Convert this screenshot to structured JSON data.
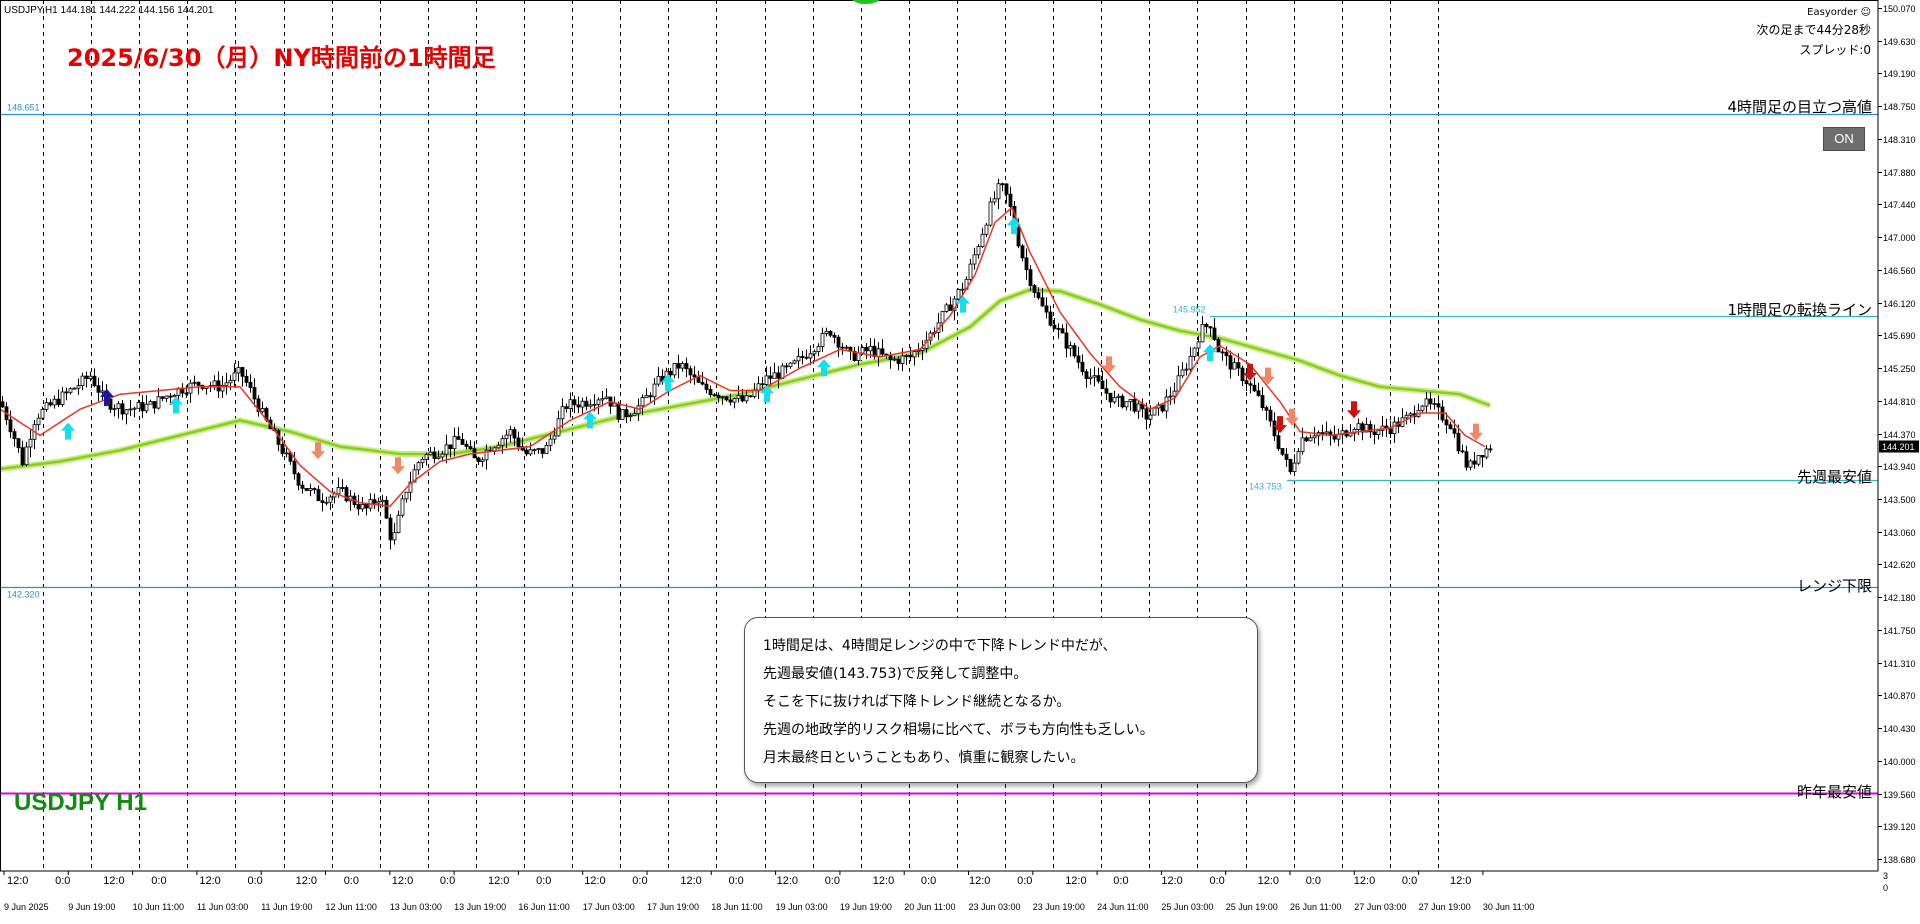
{
  "header": {
    "symbol_info": "USDJPY,H1  144.181 144.222 144.156 144.201",
    "title": "2025/6/30（月）NY時間前の1時間足",
    "symbol_label": "USDJPY H1"
  },
  "easyorder": {
    "brand": "Easyorder ☺",
    "next_bar": "次の足まで44分28秒",
    "spread": "スプレッド:0",
    "on_button": "ON"
  },
  "price_axis": {
    "labels": [
      "150.070",
      "149.630",
      "149.190",
      "148.750",
      "148.310",
      "147.880",
      "147.440",
      "147.000",
      "146.560",
      "146.120",
      "145.690",
      "145.250",
      "144.810",
      "144.370",
      "143.940",
      "143.500",
      "143.060",
      "142.620",
      "142.180",
      "141.750",
      "141.310",
      "140.870",
      "140.430",
      "140.000",
      "139.560",
      "139.120",
      "138.680"
    ],
    "current_price": "144.201",
    "bottom_labels": [
      "3",
      "0"
    ]
  },
  "time_axis": {
    "hour_labels": [
      "12:0",
      "0:0",
      "12:0",
      "0:0",
      "12:0",
      "0:0",
      "12:0",
      "0:0",
      "12:0",
      "0:0",
      "12:0",
      "0:0",
      "12:0",
      "0:0",
      "12:0",
      "0:0",
      "12:0",
      "0:0",
      "12:0",
      "0:0",
      "12:0",
      "0:0",
      "12:0",
      "0:0",
      "12:0",
      "0:0",
      "12:0",
      "0:0",
      "12:0",
      "0:0",
      "12:0"
    ],
    "date_labels": [
      "9 Jun 2025",
      "9 Jun 19:00",
      "10 Jun 11:00",
      "11 Jun 03:00",
      "11 Jun 19:00",
      "12 Jun 11:00",
      "13 Jun 03:00",
      "13 Jun 19:00",
      "16 Jun 11:00",
      "17 Jun 03:00",
      "17 Jun 19:00",
      "18 Jun 11:00",
      "19 Jun 03:00",
      "19 Jun 19:00",
      "20 Jun 11:00",
      "23 Jun 03:00",
      "23 Jun 19:00",
      "24 Jun 11:00",
      "25 Jun 03:00",
      "25 Jun 19:00",
      "26 Jun 11:00",
      "27 Jun 03:00",
      "27 Jun 19:00",
      "30 Jun 11:00"
    ]
  },
  "levels": [
    {
      "price": 148.651,
      "price_label": "148.651",
      "text": "4時間足の目立つ高値",
      "color": "#2b8fd6"
    },
    {
      "price": 145.952,
      "price_label": "145.952",
      "text": "1時間足の転換ライン",
      "color": "#36b5c8"
    },
    {
      "price": 143.753,
      "price_label": "143.753",
      "text": "先週最安値",
      "color": "#36b5c8"
    },
    {
      "price": 142.32,
      "price_label": "142.320",
      "text": "レンジ下限",
      "color": "#2b8fd6"
    },
    {
      "price": 139.56,
      "price_label": "",
      "text": "昨年最安値",
      "color": "#e000e0"
    }
  ],
  "comment": {
    "lines": [
      "1時間足は、4時間足レンジの中で下降トレンド中だが、",
      "先週最安値(143.753)で反発して調整中。",
      "そこを下に抜ければ下降トレンド継続となるか。",
      "先週の地政学的リスク相場に比べて、ボラも方向性も乏しい。",
      "月末最終日ということもあり、慎重に観察したい。"
    ]
  },
  "colors": {
    "fast_ma": "#ee3322",
    "slow_ma": "#8ccc22",
    "slow_ma_glow": "#c8ee88",
    "candle": "#000000",
    "arrow_up_cyan": "#11e0f0",
    "arrow_up_blue": "#1a1a9a",
    "arrow_down_salmon": "#f08866",
    "arrow_down_red": "#cc1111"
  },
  "chart_data": {
    "type": "line",
    "symbol": "USDJPY",
    "timeframe": "H1",
    "ylim": [
      138.68,
      150.07
    ],
    "price_path": [
      [
        0,
        144.8
      ],
      [
        12,
        144.4
      ],
      [
        22,
        144.0
      ],
      [
        35,
        144.6
      ],
      [
        55,
        144.8
      ],
      [
        75,
        145.0
      ],
      [
        90,
        145.15
      ],
      [
        105,
        144.8
      ],
      [
        125,
        144.7
      ],
      [
        150,
        144.75
      ],
      [
        175,
        144.95
      ],
      [
        200,
        145.05
      ],
      [
        220,
        145.0
      ],
      [
        240,
        145.2
      ],
      [
        252,
        144.9
      ],
      [
        265,
        144.55
      ],
      [
        280,
        144.2
      ],
      [
        300,
        143.7
      ],
      [
        320,
        143.5
      ],
      [
        340,
        143.6
      ],
      [
        365,
        143.35
      ],
      [
        380,
        143.55
      ],
      [
        392,
        142.9
      ],
      [
        405,
        143.6
      ],
      [
        420,
        144.05
      ],
      [
        440,
        144.15
      ],
      [
        460,
        144.3
      ],
      [
        475,
        144.0
      ],
      [
        490,
        144.2
      ],
      [
        510,
        144.4
      ],
      [
        525,
        144.1
      ],
      [
        545,
        144.15
      ],
      [
        565,
        144.75
      ],
      [
        585,
        144.8
      ],
      [
        605,
        144.9
      ],
      [
        620,
        144.6
      ],
      [
        640,
        144.75
      ],
      [
        660,
        145.1
      ],
      [
        680,
        145.3
      ],
      [
        700,
        145.0
      ],
      [
        720,
        144.9
      ],
      [
        745,
        144.8
      ],
      [
        765,
        145.1
      ],
      [
        790,
        145.25
      ],
      [
        810,
        145.5
      ],
      [
        830,
        145.75
      ],
      [
        850,
        145.4
      ],
      [
        870,
        145.5
      ],
      [
        890,
        145.35
      ],
      [
        910,
        145.4
      ],
      [
        930,
        145.7
      ],
      [
        950,
        146.1
      ],
      [
        965,
        146.4
      ],
      [
        980,
        147.0
      ],
      [
        990,
        147.4
      ],
      [
        1000,
        147.7
      ],
      [
        1008,
        147.5
      ],
      [
        1015,
        147.1
      ],
      [
        1025,
        146.6
      ],
      [
        1040,
        146.1
      ],
      [
        1055,
        145.8
      ],
      [
        1070,
        145.5
      ],
      [
        1085,
        145.2
      ],
      [
        1100,
        145.0
      ],
      [
        1115,
        144.8
      ],
      [
        1130,
        144.8
      ],
      [
        1145,
        144.6
      ],
      [
        1160,
        144.7
      ],
      [
        1175,
        145.0
      ],
      [
        1190,
        145.4
      ],
      [
        1200,
        145.75
      ],
      [
        1210,
        145.85
      ],
      [
        1218,
        145.5
      ],
      [
        1230,
        145.3
      ],
      [
        1245,
        145.1
      ],
      [
        1260,
        144.8
      ],
      [
        1270,
        144.5
      ],
      [
        1282,
        144.1
      ],
      [
        1290,
        143.85
      ],
      [
        1300,
        144.3
      ],
      [
        1315,
        144.4
      ],
      [
        1335,
        144.3
      ],
      [
        1355,
        144.5
      ],
      [
        1370,
        144.4
      ],
      [
        1390,
        144.45
      ],
      [
        1410,
        144.6
      ],
      [
        1420,
        144.8
      ],
      [
        1435,
        144.7
      ],
      [
        1450,
        144.5
      ],
      [
        1460,
        144.15
      ],
      [
        1468,
        143.9
      ],
      [
        1478,
        144.1
      ],
      [
        1490,
        144.2
      ]
    ],
    "fast_ma_path": [
      [
        0,
        144.7
      ],
      [
        40,
        144.35
      ],
      [
        80,
        144.7
      ],
      [
        120,
        144.9
      ],
      [
        160,
        144.95
      ],
      [
        200,
        145.0
      ],
      [
        240,
        145.0
      ],
      [
        270,
        144.5
      ],
      [
        300,
        143.95
      ],
      [
        330,
        143.6
      ],
      [
        360,
        143.45
      ],
      [
        390,
        143.4
      ],
      [
        410,
        143.7
      ],
      [
        440,
        144.0
      ],
      [
        470,
        144.1
      ],
      [
        500,
        144.15
      ],
      [
        530,
        144.2
      ],
      [
        570,
        144.55
      ],
      [
        610,
        144.8
      ],
      [
        640,
        144.7
      ],
      [
        670,
        144.95
      ],
      [
        700,
        145.15
      ],
      [
        730,
        144.95
      ],
      [
        760,
        144.95
      ],
      [
        800,
        145.25
      ],
      [
        840,
        145.5
      ],
      [
        880,
        145.4
      ],
      [
        920,
        145.5
      ],
      [
        950,
        145.95
      ],
      [
        975,
        146.5
      ],
      [
        995,
        147.2
      ],
      [
        1012,
        147.4
      ],
      [
        1030,
        146.8
      ],
      [
        1060,
        146.0
      ],
      [
        1090,
        145.45
      ],
      [
        1120,
        145.0
      ],
      [
        1150,
        144.7
      ],
      [
        1175,
        144.85
      ],
      [
        1200,
        145.4
      ],
      [
        1220,
        145.55
      ],
      [
        1250,
        145.3
      ],
      [
        1280,
        144.8
      ],
      [
        1300,
        144.4
      ],
      [
        1330,
        144.35
      ],
      [
        1360,
        144.4
      ],
      [
        1390,
        144.45
      ],
      [
        1420,
        144.65
      ],
      [
        1445,
        144.65
      ],
      [
        1465,
        144.35
      ],
      [
        1485,
        144.2
      ]
    ],
    "slow_ma_path": [
      [
        0,
        143.9
      ],
      [
        60,
        144.0
      ],
      [
        120,
        144.15
      ],
      [
        180,
        144.35
      ],
      [
        240,
        144.55
      ],
      [
        290,
        144.4
      ],
      [
        340,
        144.2
      ],
      [
        400,
        144.1
      ],
      [
        450,
        144.1
      ],
      [
        500,
        144.2
      ],
      [
        560,
        144.4
      ],
      [
        620,
        144.6
      ],
      [
        680,
        144.75
      ],
      [
        740,
        144.9
      ],
      [
        800,
        145.1
      ],
      [
        860,
        145.3
      ],
      [
        920,
        145.45
      ],
      [
        970,
        145.8
      ],
      [
        1000,
        146.15
      ],
      [
        1030,
        146.3
      ],
      [
        1060,
        146.28
      ],
      [
        1100,
        146.1
      ],
      [
        1140,
        145.9
      ],
      [
        1180,
        145.75
      ],
      [
        1220,
        145.65
      ],
      [
        1260,
        145.5
      ],
      [
        1300,
        145.35
      ],
      [
        1340,
        145.15
      ],
      [
        1380,
        145.0
      ],
      [
        1420,
        144.95
      ],
      [
        1460,
        144.9
      ],
      [
        1490,
        144.75
      ]
    ],
    "arrows": [
      {
        "x": 68,
        "price": 144.4,
        "dir": "up",
        "kind": "cyan"
      },
      {
        "x": 107,
        "price": 144.85,
        "dir": "up",
        "kind": "blue"
      },
      {
        "x": 176,
        "price": 144.75,
        "dir": "up",
        "kind": "cyan"
      },
      {
        "x": 318,
        "price": 144.15,
        "dir": "down",
        "kind": "salmon"
      },
      {
        "x": 398,
        "price": 143.95,
        "dir": "down",
        "kind": "salmon"
      },
      {
        "x": 590,
        "price": 144.55,
        "dir": "up",
        "kind": "cyan"
      },
      {
        "x": 668,
        "price": 145.05,
        "dir": "up",
        "kind": "cyan"
      },
      {
        "x": 767,
        "price": 144.9,
        "dir": "up",
        "kind": "cyan"
      },
      {
        "x": 824,
        "price": 145.25,
        "dir": "up",
        "kind": "cyan"
      },
      {
        "x": 963,
        "price": 146.1,
        "dir": "up",
        "kind": "cyan"
      },
      {
        "x": 1014,
        "price": 147.15,
        "dir": "up",
        "kind": "cyan"
      },
      {
        "x": 1109,
        "price": 145.3,
        "dir": "down",
        "kind": "salmon"
      },
      {
        "x": 1210,
        "price": 145.45,
        "dir": "up",
        "kind": "cyan"
      },
      {
        "x": 1250,
        "price": 145.2,
        "dir": "down",
        "kind": "red"
      },
      {
        "x": 1268,
        "price": 145.15,
        "dir": "down",
        "kind": "salmon"
      },
      {
        "x": 1280,
        "price": 144.5,
        "dir": "down",
        "kind": "red"
      },
      {
        "x": 1292,
        "price": 144.6,
        "dir": "down",
        "kind": "salmon"
      },
      {
        "x": 1354,
        "price": 144.7,
        "dir": "down",
        "kind": "red"
      },
      {
        "x": 1476,
        "price": 144.4,
        "dir": "down",
        "kind": "salmon"
      }
    ]
  }
}
